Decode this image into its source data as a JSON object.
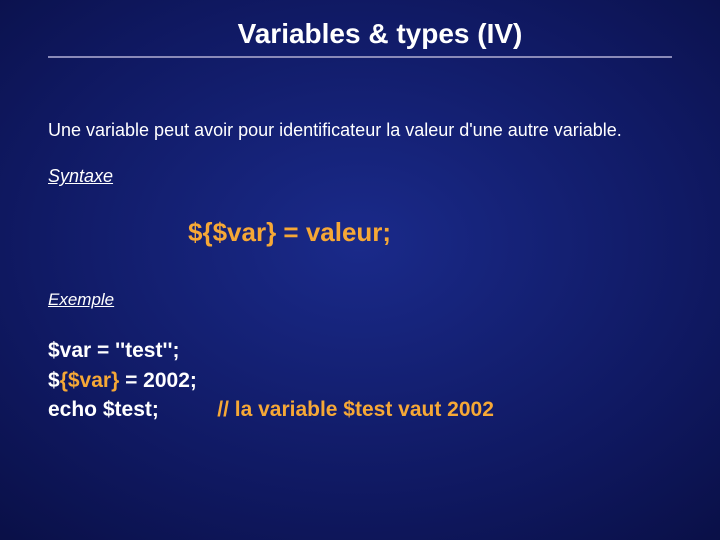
{
  "colors": {
    "background_center": "#1a2a8a",
    "background_mid": "#0f1860",
    "background_outer": "#050830",
    "background_edge": "#020418",
    "text": "#ffffff",
    "accent": "#f6a836",
    "underline": "#8a8ab8"
  },
  "title": "Variables & types (IV)",
  "intro": "Une variable peut avoir pour identificateur la valeur d'une autre variable.",
  "syntax_label": "Syntaxe",
  "syntax_code": "${$var} = valeur;",
  "example_label": "Exemple",
  "code": {
    "line1": "$var = ''test'';",
    "line2_a": "$",
    "line2_b": "{$var}",
    "line2_c": " = 2002;",
    "line3_a": "echo $test;",
    "line3_spacer": "          ",
    "line3_b": "// la variable $test vaut 2002"
  }
}
